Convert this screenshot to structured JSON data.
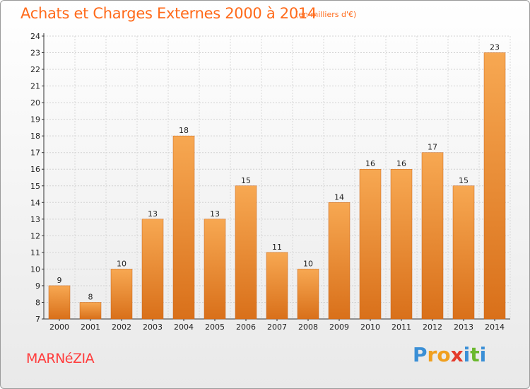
{
  "header": {
    "title": "Achats et Charges Externes 2000 à 2014",
    "subtitle": "(en milliers d'€)"
  },
  "footer": {
    "town": "MARNéZIA",
    "logo_letters": [
      "P",
      "r",
      "o",
      "x",
      "i",
      "t",
      "i"
    ]
  },
  "colors": {
    "title": "#ff6a1a",
    "town": "#ff3c3c",
    "bar_top": "#f7a852",
    "bar_bottom": "#d9701a",
    "logo": [
      "#3a8fd6",
      "#f0a020",
      "#f0a020",
      "#e43b2c",
      "#3a8fd6",
      "#6ab82d",
      "#3a8fd6"
    ]
  },
  "chart_data": {
    "type": "bar",
    "title": "Achats et Charges Externes 2000 à 2014",
    "subtitle": "(en milliers d'€)",
    "categories": [
      "2000",
      "2001",
      "2002",
      "2003",
      "2004",
      "2005",
      "2006",
      "2007",
      "2008",
      "2009",
      "2010",
      "2011",
      "2012",
      "2013",
      "2014"
    ],
    "values": [
      9,
      8,
      10,
      13,
      18,
      13,
      15,
      11,
      10,
      14,
      16,
      16,
      17,
      15,
      23
    ],
    "ylim": [
      7,
      24
    ],
    "yticks": [
      7,
      8,
      9,
      10,
      11,
      12,
      13,
      14,
      15,
      16,
      17,
      18,
      19,
      20,
      21,
      22,
      23,
      24
    ],
    "xlabel": "",
    "ylabel": "",
    "grid": true,
    "legend": "none"
  }
}
